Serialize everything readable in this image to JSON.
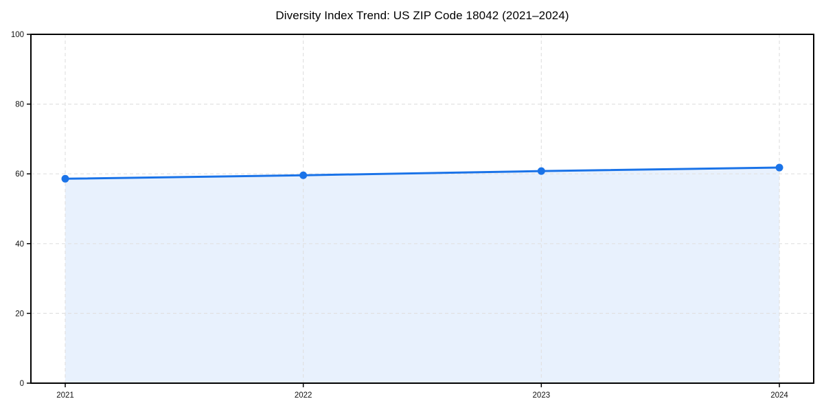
{
  "chart_data": {
    "type": "area",
    "title": "Diversity Index Trend: US ZIP Code 18042 (2021–2024)",
    "categories": [
      "2021",
      "2022",
      "2023",
      "2024"
    ],
    "series": [
      {
        "name": "Diversity Index",
        "values": [
          58.6,
          59.6,
          60.8,
          61.8
        ]
      }
    ],
    "xlabel": "",
    "ylabel": "",
    "ylim": [
      0,
      100
    ],
    "yticks": [
      0,
      20,
      40,
      60,
      80,
      100
    ],
    "grid": {
      "visible": true,
      "style": "dashed",
      "color": "#e1e1e1"
    },
    "legend": {
      "visible": false
    },
    "colors": {
      "line": "#1a73e8",
      "marker": "#1a73e8",
      "fill": "#1a73e8",
      "fill_opacity": 0.1,
      "spine": "#000000",
      "tick_text": "#111111",
      "background": "#ffffff"
    }
  }
}
